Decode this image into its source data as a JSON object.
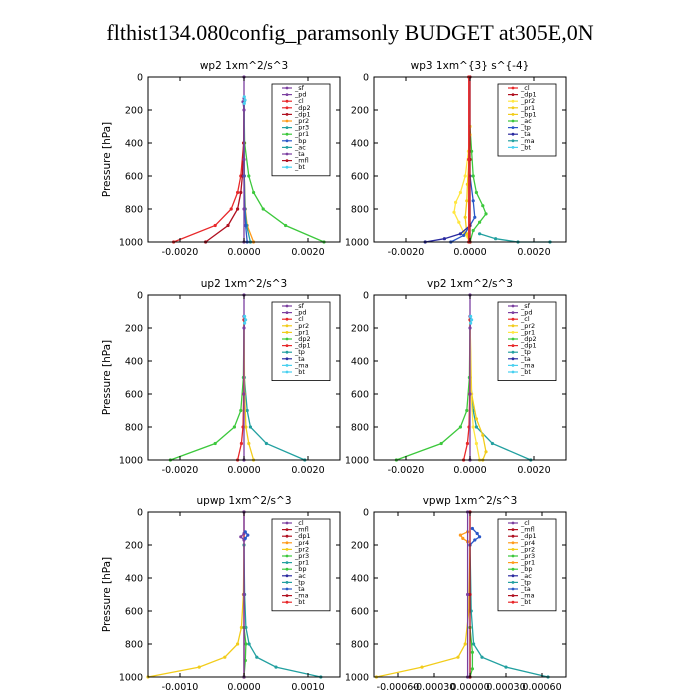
{
  "figure": {
    "suptitle": "flthist134.080config_paramsonly  BUDGET at305E,0N"
  },
  "colors": {
    "purple": "#7b3fa0",
    "darkred": "#b01020",
    "red": "#e8282a",
    "orange": "#ff9a1a",
    "gold": "#f2cc1a",
    "yellow": "#ffe640",
    "green": "#3cc83c",
    "teal": "#22a0a0",
    "blue": "#2a58c8",
    "navy": "#2a2aa0",
    "cyan": "#48d0f0",
    "gray": "#555555"
  },
  "chart_data": [
    {
      "type": "line",
      "title": "wp2  1xm^2/s^3",
      "ylabel": "Pressure [hPa]",
      "xlim": [
        -0.003,
        0.003
      ],
      "xticks": [
        -0.002,
        0.0,
        0.002
      ],
      "xticklabels": [
        "-0.0020",
        "0.0000",
        "0.0020"
      ],
      "ylim": [
        1000,
        0
      ],
      "yticks": [
        0,
        200,
        400,
        600,
        800,
        1000
      ],
      "legend": [
        "_sf",
        "_pd",
        "_cl",
        "_dp2",
        "_dp1",
        "_pr2",
        "_pr3",
        "_pr1",
        "_bp",
        "_ac",
        "_ta",
        "_mfl",
        "_bt"
      ],
      "series": [
        {
          "name": "_pr1",
          "color": "green",
          "y": [
            150,
            400,
            600,
            700,
            800,
            900,
            1000
          ],
          "x": [
            0,
            2e-05,
            0.00015,
            0.0003,
            0.0006,
            0.0013,
            0.0025
          ]
        },
        {
          "name": "_dp2",
          "color": "red",
          "y": [
            150,
            400,
            600,
            700,
            800,
            900,
            1000
          ],
          "x": [
            0,
            -1e-05,
            -0.0001,
            -0.0002,
            -0.0004,
            -0.0009,
            -0.0022
          ]
        },
        {
          "name": "_dp1",
          "color": "darkred",
          "y": [
            150,
            400,
            600,
            700,
            800,
            900,
            1000
          ],
          "x": [
            0,
            -1e-05,
            -5e-05,
            -0.0001,
            -0.0002,
            -0.0005,
            -0.0012
          ]
        },
        {
          "name": "_pr2",
          "color": "orange",
          "y": [
            150,
            600,
            800,
            900,
            1000
          ],
          "x": [
            0,
            1e-05,
            4e-05,
            0.0001,
            0.0003
          ]
        },
        {
          "name": "_ac",
          "color": "teal",
          "y": [
            150,
            600,
            800,
            900,
            1000
          ],
          "x": [
            0,
            1e-05,
            3e-05,
            8e-05,
            0.0002
          ]
        },
        {
          "name": "_bp",
          "color": "blue",
          "y": [
            150,
            600,
            800,
            900,
            1000
          ],
          "x": [
            0,
            0,
            2e-05,
            5e-05,
            0.0001
          ]
        },
        {
          "name": "_pd",
          "color": "purple",
          "y": [
            0,
            130,
            150,
            200,
            500,
            800,
            1000
          ],
          "x": [
            0,
            0,
            -3e-05,
            0,
            0,
            0,
            0
          ]
        },
        {
          "name": "_bt",
          "color": "cyan",
          "y": [
            120,
            140,
            160
          ],
          "x": [
            1e-05,
            3e-05,
            1e-05
          ]
        }
      ]
    },
    {
      "type": "line",
      "title": "wp3  1xm^{3} s^{-4}",
      "ylabel": "",
      "xlim": [
        -0.003,
        0.003
      ],
      "xticks": [
        -0.002,
        0.0,
        0.002
      ],
      "xticklabels": [
        "-0.0020",
        "0.0000",
        "0.0020"
      ],
      "ylim": [
        1000,
        0
      ],
      "yticks": [
        0,
        200,
        400,
        600,
        800,
        1000
      ],
      "legend": [
        "_cl",
        "_dp1",
        "_pr2",
        "_pr1",
        "_bp1",
        "_ac",
        "_tp",
        "_ta",
        "_ma",
        "_bt"
      ],
      "series": [
        {
          "name": "_ac",
          "color": "green",
          "y": [
            300,
            450,
            600,
            700,
            780,
            830,
            880,
            930,
            1000
          ],
          "x": [
            0,
            5e-05,
            0.0001,
            0.0002,
            0.0004,
            0.0005,
            0.0003,
            0.0001,
            0
          ]
        },
        {
          "name": "_pr2",
          "color": "yellow",
          "y": [
            300,
            450,
            600,
            700,
            760,
            820,
            880,
            940,
            1000
          ],
          "x": [
            0,
            -5e-05,
            -0.00015,
            -0.0003,
            -0.00045,
            -0.0005,
            -0.00035,
            -0.0002,
            0
          ]
        },
        {
          "name": "_pr1",
          "color": "gold",
          "y": [
            350,
            500,
            650,
            750,
            850,
            950,
            1000
          ],
          "x": [
            0,
            -3e-05,
            -8e-05,
            -0.0001,
            -0.00015,
            -0.0001,
            0
          ]
        },
        {
          "name": "_tp",
          "color": "blue",
          "y": [
            600,
            750,
            850,
            900,
            960,
            1000
          ],
          "x": [
            0,
            0.0001,
            0.00015,
            0,
            -0.0002,
            -0.0006
          ]
        },
        {
          "name": "_ta",
          "color": "navy",
          "y": [
            900,
            950,
            980,
            1000
          ],
          "x": [
            0,
            -0.0003,
            -0.0008,
            -0.0014
          ]
        },
        {
          "name": "_ma",
          "color": "teal",
          "y": [
            950,
            980,
            1000,
            1000
          ],
          "x": [
            0.0003,
            0.0008,
            0.0015,
            0.0025
          ]
        },
        {
          "name": "_dp1",
          "color": "darkred",
          "y": [
            0,
            500,
            1000
          ],
          "x": [
            0,
            0,
            0
          ]
        },
        {
          "name": "_cl",
          "color": "red",
          "y": [
            0,
            500,
            1000
          ],
          "x": [
            -4e-05,
            -4e-05,
            -4e-05
          ]
        }
      ]
    },
    {
      "type": "line",
      "title": "up2  1xm^2/s^3",
      "ylabel": "Pressure [hPa]",
      "xlim": [
        -0.003,
        0.003
      ],
      "xticks": [
        -0.002,
        0.0,
        0.002
      ],
      "xticklabels": [
        "-0.0020",
        "0.0000",
        "0.0020"
      ],
      "ylim": [
        1000,
        0
      ],
      "yticks": [
        0,
        200,
        400,
        600,
        800,
        1000
      ],
      "legend": [
        "_sf",
        "_pd",
        "_cl",
        "_pr2",
        "_pr1",
        "_dp2",
        "_dp1",
        "_tp",
        "_ta",
        "_ma",
        "_bt"
      ],
      "series": [
        {
          "name": "_dp2",
          "color": "green",
          "y": [
            150,
            500,
            700,
            800,
            900,
            1000
          ],
          "x": [
            0,
            -2e-05,
            -0.0001,
            -0.0003,
            -0.0009,
            -0.0023
          ]
        },
        {
          "name": "_tp",
          "color": "teal",
          "y": [
            150,
            500,
            700,
            800,
            900,
            1000
          ],
          "x": [
            0,
            1e-05,
            0.0001,
            0.0002,
            0.0007,
            0.0019
          ]
        },
        {
          "name": "_pr2",
          "color": "gold",
          "y": [
            150,
            600,
            800,
            900,
            1000
          ],
          "x": [
            0,
            2e-05,
            6e-05,
            0.00015,
            0.0003
          ]
        },
        {
          "name": "_dp1",
          "color": "red",
          "y": [
            150,
            600,
            800,
            900,
            1000
          ],
          "x": [
            0,
            -1e-05,
            -3e-05,
            -8e-05,
            -0.0002
          ]
        },
        {
          "name": "_pd",
          "color": "purple",
          "y": [
            0,
            130,
            150,
            200,
            600,
            1000
          ],
          "x": [
            0,
            0,
            3e-05,
            0,
            0,
            0
          ]
        },
        {
          "name": "_bt",
          "color": "cyan",
          "y": [
            130,
            150,
            170
          ],
          "x": [
            2e-05,
            5e-05,
            2e-05
          ]
        }
      ]
    },
    {
      "type": "line",
      "title": "vp2  1xm^2/s^3",
      "ylabel": "",
      "xlim": [
        -0.003,
        0.003
      ],
      "xticks": [
        -0.002,
        0.0,
        0.002
      ],
      "xticklabels": [
        "-0.0020",
        "0.0000",
        "0.0020"
      ],
      "ylim": [
        1000,
        0
      ],
      "yticks": [
        0,
        200,
        400,
        600,
        800,
        1000
      ],
      "legend": [
        "_sf",
        "_pd",
        "_cl",
        "_pr2",
        "_pr1",
        "_dp2",
        "_dp1",
        "_tp",
        "_ta",
        "_ma",
        "_bt"
      ],
      "series": [
        {
          "name": "_dp2",
          "color": "green",
          "y": [
            150,
            500,
            700,
            800,
            900,
            1000
          ],
          "x": [
            0,
            -2e-05,
            -0.0001,
            -0.0003,
            -0.0009,
            -0.0023
          ]
        },
        {
          "name": "_tp",
          "color": "teal",
          "y": [
            150,
            500,
            700,
            800,
            900,
            1000
          ],
          "x": [
            0,
            1e-05,
            0.0001,
            0.0002,
            0.0007,
            0.0019
          ]
        },
        {
          "name": "_pr2",
          "color": "gold",
          "y": [
            150,
            600,
            750,
            850,
            950,
            1000
          ],
          "x": [
            0,
            5e-05,
            0.0002,
            0.0004,
            0.0005,
            0.0004
          ]
        },
        {
          "name": "_pr1",
          "color": "yellow",
          "y": [
            150,
            600,
            800,
            900,
            1000
          ],
          "x": [
            0,
            3e-05,
            0.0001,
            0.0002,
            0.0003
          ]
        },
        {
          "name": "_dp1",
          "color": "red",
          "y": [
            150,
            600,
            800,
            900,
            1000
          ],
          "x": [
            0,
            -1e-05,
            -3e-05,
            -8e-05,
            -0.0002
          ]
        },
        {
          "name": "_pd",
          "color": "purple",
          "y": [
            0,
            130,
            150,
            200,
            600,
            1000
          ],
          "x": [
            0,
            0,
            3e-05,
            0,
            0,
            0
          ]
        },
        {
          "name": "_bt",
          "color": "cyan",
          "y": [
            130,
            150,
            170
          ],
          "x": [
            2e-05,
            5e-05,
            2e-05
          ]
        }
      ]
    },
    {
      "type": "line",
      "title": "upwp   1xm^2/s^3",
      "ylabel": "Pressure [hPa]",
      "xlim": [
        -0.0015,
        0.0015
      ],
      "xticks": [
        -0.001,
        0.0,
        0.001
      ],
      "xticklabels": [
        "-0.0010",
        "0.0000",
        "0.0010"
      ],
      "ylim": [
        1000,
        0
      ],
      "yticks": [
        0,
        200,
        400,
        600,
        800,
        1000
      ],
      "legend": [
        "_cl",
        "_mfl",
        "_dp1",
        "_pr4",
        "_pr2",
        "_pr3",
        "_pr1",
        "_bp",
        "_ac",
        "_tp",
        "_ta",
        "_ma",
        "_bt"
      ],
      "series": [
        {
          "name": "_pr2",
          "color": "gold",
          "y": [
            200,
            500,
            700,
            800,
            880,
            940,
            1000
          ],
          "x": [
            0,
            -1e-05,
            -4e-05,
            -0.0001,
            -0.0003,
            -0.0007,
            -0.0015
          ]
        },
        {
          "name": "_tp",
          "color": "teal",
          "y": [
            200,
            500,
            700,
            800,
            880,
            940,
            1000
          ],
          "x": [
            0,
            1e-05,
            3e-05,
            8e-05,
            0.0002,
            0.0005,
            0.0012
          ]
        },
        {
          "name": "_bp",
          "color": "green",
          "y": [
            700,
            800,
            900,
            1000
          ],
          "x": [
            0,
            3e-05,
            2e-05,
            0
          ]
        },
        {
          "name": "_dp1",
          "color": "darkred",
          "y": [
            0,
            500,
            1000
          ],
          "x": [
            0,
            0,
            0
          ]
        },
        {
          "name": "_cl",
          "color": "purple",
          "y": [
            0,
            130,
            150,
            170,
            500,
            1000
          ],
          "x": [
            0,
            0,
            -5e-05,
            0,
            0,
            0
          ]
        },
        {
          "name": "_ta",
          "color": "blue",
          "y": [
            120,
            140,
            160
          ],
          "x": [
            2e-05,
            6e-05,
            2e-05
          ]
        }
      ]
    },
    {
      "type": "line",
      "title": "vpwp   1xm^2/s^3",
      "ylabel": "",
      "xlim": [
        -0.0008,
        0.0008
      ],
      "xticks": [
        -0.0006,
        -0.0003,
        0.0,
        0.0003,
        0.0006
      ],
      "xticklabels": [
        "-0.00060",
        "-0.00030",
        "0.00000",
        "0.00030",
        "0.00060"
      ],
      "ylim": [
        1000,
        0
      ],
      "yticks": [
        0,
        200,
        400,
        600,
        800,
        1000
      ],
      "legend": [
        "_cl",
        "_mfl",
        "_dp1",
        "_pr4",
        "_pr2",
        "_pr3",
        "_pr1",
        "_bp",
        "_ac",
        "_tp",
        "_ta",
        "_ma",
        "_bt"
      ],
      "series": [
        {
          "name": "_pr2",
          "color": "gold",
          "y": [
            200,
            600,
            800,
            880,
            940,
            1000
          ],
          "x": [
            0,
            -1e-05,
            -4e-05,
            -0.0001,
            -0.0004,
            -0.00078
          ]
        },
        {
          "name": "_tp",
          "color": "teal",
          "y": [
            200,
            600,
            800,
            880,
            940,
            1000
          ],
          "x": [
            0,
            1e-05,
            3e-05,
            0.0001,
            0.0003,
            0.00065
          ]
        },
        {
          "name": "_bp",
          "color": "green",
          "y": [
            700,
            850,
            950,
            1000
          ],
          "x": [
            0,
            2e-05,
            2e-05,
            0
          ]
        },
        {
          "name": "_ta",
          "color": "blue",
          "y": [
            100,
            130,
            150,
            170,
            200
          ],
          "x": [
            2e-05,
            6e-05,
            8e-05,
            4e-05,
            0
          ]
        },
        {
          "name": "_pr1",
          "color": "orange",
          "y": [
            120,
            140,
            160,
            180
          ],
          "x": [
            -2e-05,
            -8e-05,
            -6e-05,
            -2e-05
          ]
        },
        {
          "name": "_dp1",
          "color": "darkred",
          "y": [
            0,
            500,
            1000
          ],
          "x": [
            0,
            0,
            0
          ]
        },
        {
          "name": "_cl",
          "color": "purple",
          "y": [
            0,
            500,
            1000
          ],
          "x": [
            -2e-05,
            -2e-05,
            -2e-05
          ]
        }
      ]
    }
  ]
}
